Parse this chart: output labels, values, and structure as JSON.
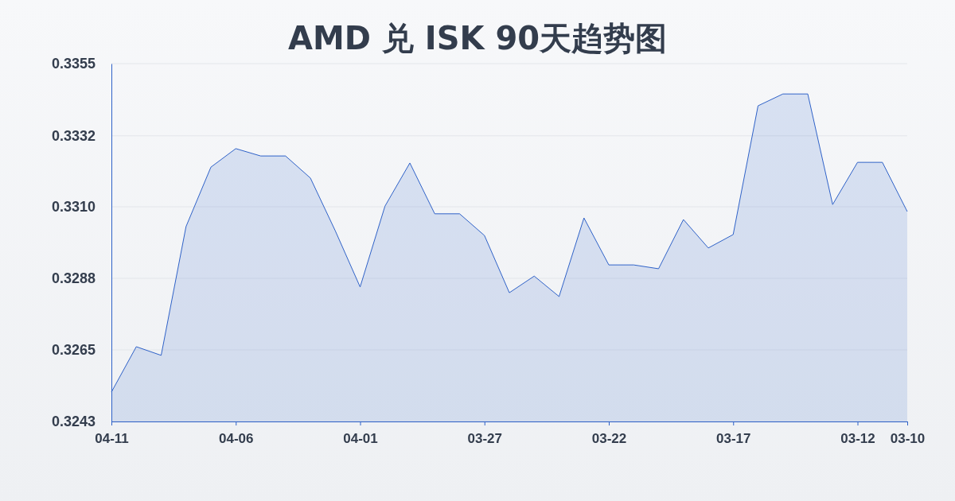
{
  "chart_data": {
    "type": "area",
    "title": "AMD 兑 ISK 90天趋势图",
    "categories": [
      "04-11",
      null,
      null,
      null,
      null,
      "04-06",
      null,
      null,
      null,
      null,
      "04-01",
      null,
      null,
      null,
      null,
      "03-27",
      null,
      null,
      null,
      null,
      "03-22",
      null,
      null,
      null,
      null,
      "03-17",
      null,
      null,
      null,
      null,
      "03-12",
      null,
      "03-10"
    ],
    "series": [
      {
        "color": "#2f62c8",
        "values": [
          0.32522,
          0.32664,
          0.32637,
          0.3304,
          0.33226,
          0.33284,
          0.33261,
          0.33261,
          0.33192,
          0.33027,
          0.32851,
          0.33104,
          0.33239,
          0.3308,
          0.3308,
          0.33012,
          0.32833,
          0.32885,
          0.32821,
          0.33067,
          0.3292,
          0.3292,
          0.32908,
          0.33062,
          0.32973,
          0.33015,
          0.33418,
          0.33455,
          0.33455,
          0.33109,
          0.33241,
          0.33241,
          0.33087
        ]
      }
    ],
    "ylim": [
      0.3243,
      0.3355
    ],
    "yticks": [
      {
        "value": 0.3243,
        "label": "0.3243"
      },
      {
        "value": 0.32654,
        "label": "0.3265"
      },
      {
        "value": 0.32878,
        "label": "0.3288"
      },
      {
        "value": 0.33102,
        "label": "0.3310"
      },
      {
        "value": 0.33324,
        "label": "0.3332"
      },
      {
        "value": 0.3355,
        "label": "0.3355"
      }
    ],
    "grid": "y"
  }
}
